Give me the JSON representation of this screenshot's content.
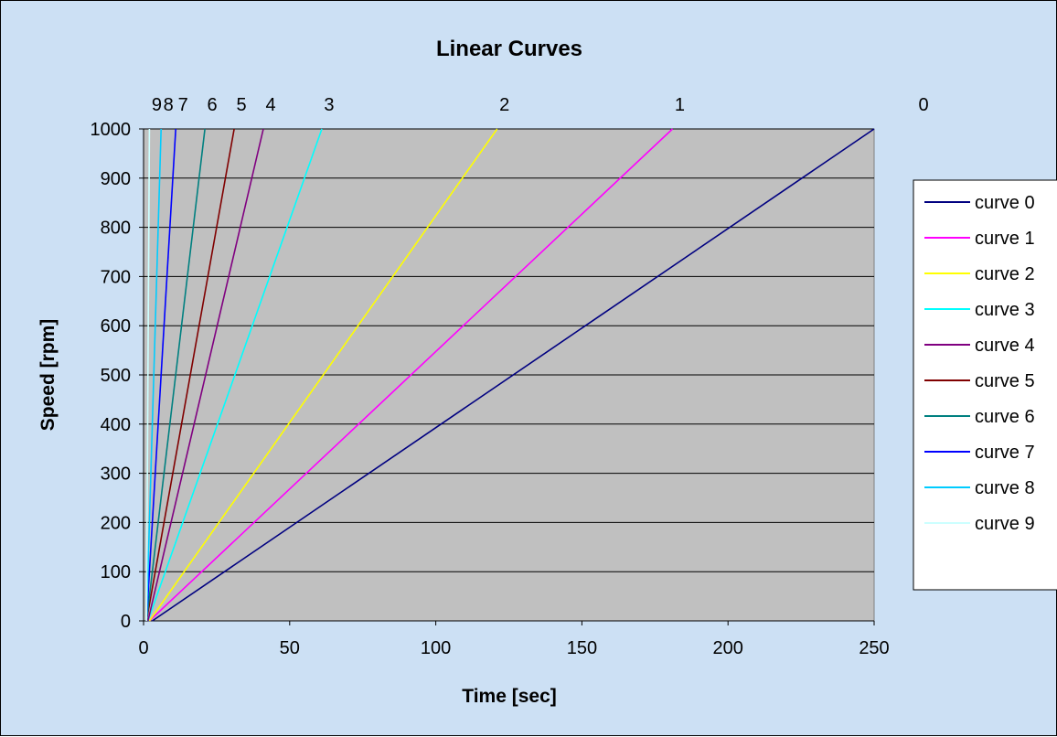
{
  "chart_data": {
    "type": "line",
    "title": "Linear Curves",
    "xlabel": "Time [sec]",
    "ylabel": "Speed [rpm]",
    "xlim": [
      0,
      250
    ],
    "ylim": [
      0,
      1000
    ],
    "x_ticks": [
      0,
      50,
      100,
      150,
      200,
      250
    ],
    "y_ticks": [
      0,
      100,
      200,
      300,
      400,
      500,
      600,
      700,
      800,
      900,
      1000
    ],
    "grid": "horizontal",
    "plot_background": "#c0c0c0",
    "chart_background": "#cce0f4",
    "legend_position": "right",
    "top_labels": [
      "9",
      "8",
      "7",
      "6",
      "5",
      "4",
      "3",
      "2",
      "1",
      "0"
    ],
    "series": [
      {
        "name": "curve 0",
        "color": "#000080",
        "x": [
          3,
          250
        ],
        "y": [
          0,
          1000
        ]
      },
      {
        "name": "curve 1",
        "color": "#ff00ff",
        "x": [
          2,
          181
        ],
        "y": [
          0,
          1000
        ]
      },
      {
        "name": "curve 2",
        "color": "#ffff00",
        "x": [
          2,
          121
        ],
        "y": [
          0,
          1000
        ]
      },
      {
        "name": "curve 3",
        "color": "#00ffff",
        "x": [
          1.5,
          61
        ],
        "y": [
          0,
          1000
        ]
      },
      {
        "name": "curve 4",
        "color": "#800080",
        "x": [
          1.5,
          41
        ],
        "y": [
          0,
          1000
        ]
      },
      {
        "name": "curve 5",
        "color": "#800000",
        "x": [
          1,
          31
        ],
        "y": [
          0,
          1000
        ]
      },
      {
        "name": "curve 6",
        "color": "#008080",
        "x": [
          1,
          21
        ],
        "y": [
          0,
          1000
        ]
      },
      {
        "name": "curve 7",
        "color": "#0000ff",
        "x": [
          1,
          11
        ],
        "y": [
          0,
          1000
        ]
      },
      {
        "name": "curve 8",
        "color": "#00ccff",
        "x": [
          1,
          6
        ],
        "y": [
          0,
          1000
        ]
      },
      {
        "name": "curve 9",
        "color": "#ccffff",
        "x": [
          1,
          2
        ],
        "y": [
          0,
          1000
        ]
      }
    ]
  }
}
